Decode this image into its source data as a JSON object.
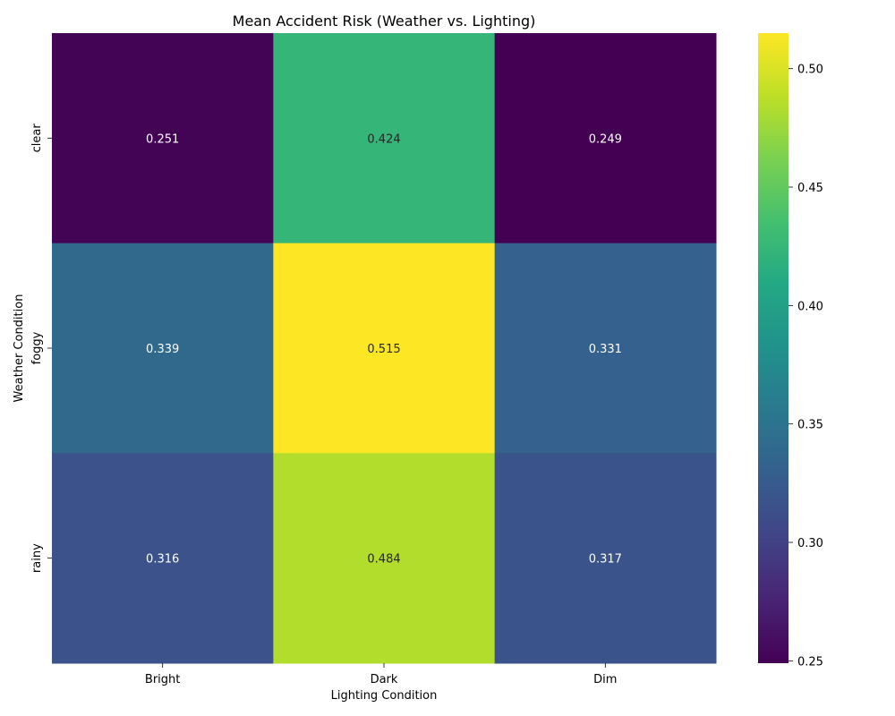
{
  "chart_data": {
    "type": "heatmap",
    "title": "Mean Accident Risk (Weather vs. Lighting)",
    "xlabel": "Lighting Condition",
    "ylabel": "Weather Condition",
    "x_categories": [
      "Bright",
      "Dark",
      "Dim"
    ],
    "y_categories": [
      "clear",
      "foggy",
      "rainy"
    ],
    "values": [
      [
        0.251,
        0.424,
        0.249
      ],
      [
        0.339,
        0.515,
        0.331
      ],
      [
        0.316,
        0.484,
        0.317
      ]
    ],
    "value_labels": [
      [
        "0.251",
        "0.424",
        "0.249"
      ],
      [
        "0.339",
        "0.515",
        "0.331"
      ],
      [
        "0.316",
        "0.484",
        "0.317"
      ]
    ],
    "colormap": "viridis",
    "colorbar": {
      "range": [
        0.249,
        0.515
      ],
      "ticks": [
        0.25,
        0.3,
        0.35,
        0.4,
        0.45,
        0.5
      ],
      "tick_labels": [
        "0.25",
        "0.30",
        "0.35",
        "0.40",
        "0.45",
        "0.50"
      ]
    },
    "grid": false,
    "legend": "colorbar-right"
  }
}
